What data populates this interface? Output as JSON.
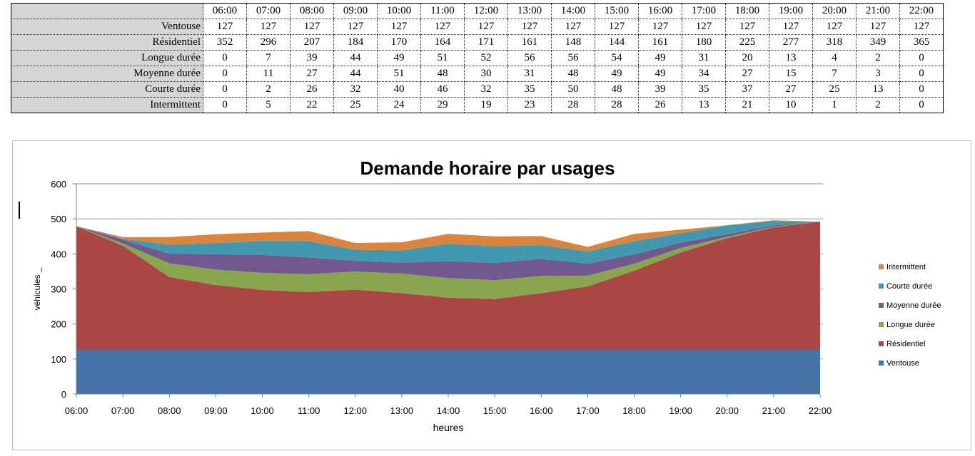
{
  "table": {
    "hours": [
      "06:00",
      "07:00",
      "08:00",
      "09:00",
      "10:00",
      "11:00",
      "12:00",
      "13:00",
      "14:00",
      "15:00",
      "16:00",
      "17:00",
      "18:00",
      "19:00",
      "20:00",
      "21:00",
      "22:00"
    ],
    "rows": [
      {
        "label": "Ventouse",
        "values": [
          127,
          127,
          127,
          127,
          127,
          127,
          127,
          127,
          127,
          127,
          127,
          127,
          127,
          127,
          127,
          127,
          127
        ]
      },
      {
        "label": "Résidentiel",
        "values": [
          352,
          296,
          207,
          184,
          170,
          164,
          171,
          161,
          148,
          144,
          161,
          180,
          225,
          277,
          318,
          349,
          365
        ]
      },
      {
        "label": "Longue durée",
        "values": [
          0,
          7,
          39,
          44,
          49,
          51,
          52,
          56,
          56,
          54,
          49,
          31,
          20,
          13,
          4,
          2,
          0
        ]
      },
      {
        "label": "Moyenne durée",
        "values": [
          0,
          11,
          27,
          44,
          51,
          48,
          30,
          31,
          48,
          49,
          49,
          34,
          27,
          15,
          7,
          3,
          0
        ]
      },
      {
        "label": "Courte durée",
        "values": [
          0,
          2,
          26,
          32,
          40,
          46,
          32,
          35,
          50,
          48,
          39,
          35,
          37,
          27,
          25,
          13,
          0
        ]
      },
      {
        "label": "Intermittent",
        "values": [
          0,
          5,
          22,
          25,
          24,
          29,
          19,
          23,
          28,
          28,
          26,
          13,
          21,
          10,
          1,
          2,
          0
        ]
      }
    ]
  },
  "chart_data": {
    "type": "area",
    "stacked": true,
    "title": "Demande horaire par usages",
    "xlabel": "heures",
    "ylabel": "véhicules _",
    "ylim": [
      0,
      600
    ],
    "yticks": [
      0,
      100,
      200,
      300,
      400,
      500,
      600
    ],
    "grid": true,
    "legend_position": "right",
    "categories": [
      "06:00",
      "07:00",
      "08:00",
      "09:00",
      "10:00",
      "11:00",
      "12:00",
      "13:00",
      "14:00",
      "15:00",
      "16:00",
      "17:00",
      "18:00",
      "19:00",
      "20:00",
      "21:00",
      "22:00"
    ],
    "series": [
      {
        "name": "Ventouse",
        "color": "#4572a7",
        "values": [
          127,
          127,
          127,
          127,
          127,
          127,
          127,
          127,
          127,
          127,
          127,
          127,
          127,
          127,
          127,
          127,
          127
        ]
      },
      {
        "name": "Résidentiel",
        "color": "#aa4643",
        "values": [
          352,
          296,
          207,
          184,
          170,
          164,
          171,
          161,
          148,
          144,
          161,
          180,
          225,
          277,
          318,
          349,
          365
        ]
      },
      {
        "name": "Longue durée",
        "color": "#89a54e",
        "values": [
          0,
          7,
          39,
          44,
          49,
          51,
          52,
          56,
          56,
          54,
          49,
          31,
          20,
          13,
          4,
          2,
          0
        ]
      },
      {
        "name": "Moyenne durée",
        "color": "#71588f",
        "values": [
          0,
          11,
          27,
          44,
          51,
          48,
          30,
          31,
          48,
          49,
          49,
          34,
          27,
          15,
          7,
          3,
          0
        ]
      },
      {
        "name": "Courte durée",
        "color": "#4198af",
        "values": [
          0,
          2,
          26,
          32,
          40,
          46,
          32,
          35,
          50,
          48,
          39,
          35,
          37,
          27,
          25,
          13,
          0
        ]
      },
      {
        "name": "Intermittent",
        "color": "#db843d",
        "values": [
          0,
          5,
          22,
          25,
          24,
          29,
          19,
          23,
          28,
          28,
          26,
          13,
          21,
          10,
          1,
          2,
          0
        ]
      }
    ]
  }
}
